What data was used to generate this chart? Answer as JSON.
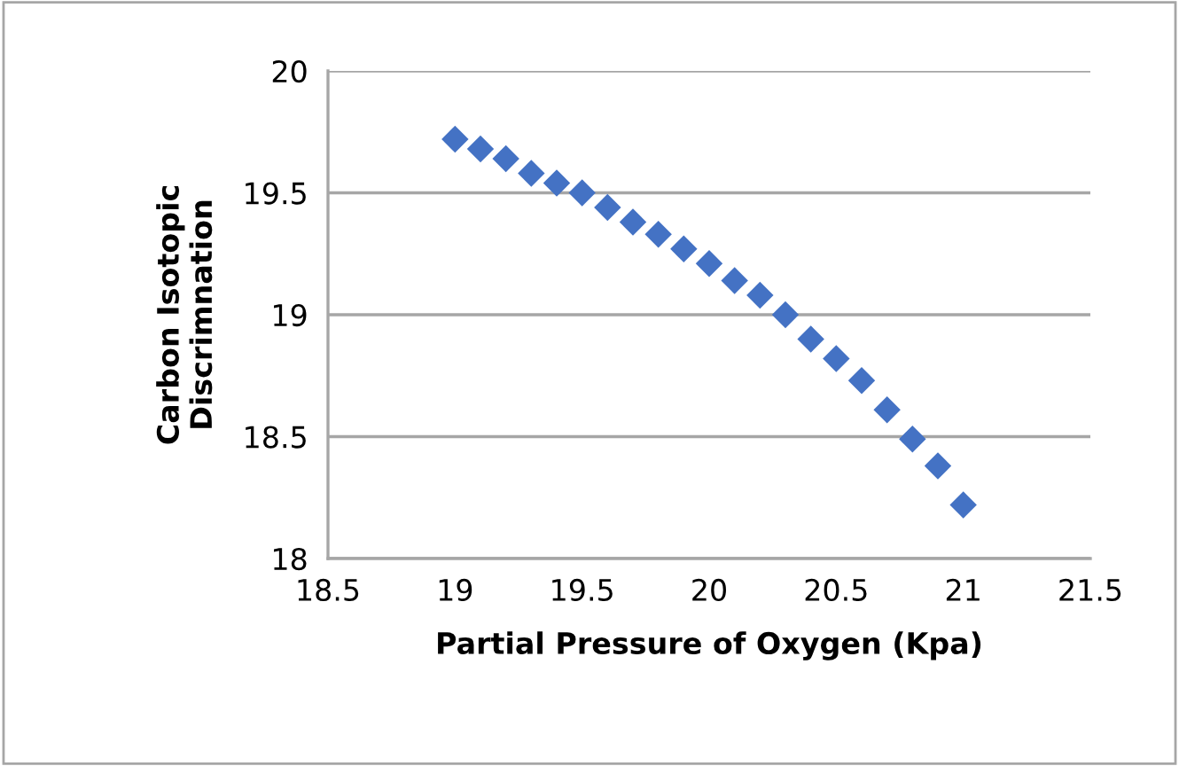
{
  "chart_data": {
    "type": "scatter",
    "xlabel": "Partial Pressure of Oxygen (Kpa)",
    "ylabel": "Carbon Isotopic\nDiscrimnation",
    "x": [
      19.0,
      19.1,
      19.2,
      19.3,
      19.4,
      19.5,
      19.6,
      19.7,
      19.8,
      19.9,
      20.0,
      20.1,
      20.2,
      20.3,
      20.4,
      20.5,
      20.6,
      20.7,
      20.8,
      20.9,
      21.0
    ],
    "series": [
      {
        "color": "#4472c4",
        "values": [
          19.72,
          19.68,
          19.64,
          19.58,
          19.54,
          19.5,
          19.44,
          19.38,
          19.33,
          19.27,
          19.21,
          19.14,
          19.08,
          19.0,
          18.9,
          18.82,
          18.73,
          18.61,
          18.49,
          18.38,
          18.22
        ]
      }
    ],
    "xlim": [
      18.5,
      21.5
    ],
    "xticks": [
      18.5,
      19,
      19.5,
      20,
      20.5,
      21,
      21.5
    ],
    "ylim": [
      18,
      20
    ],
    "yticks": [
      18,
      18.5,
      19,
      19.5,
      20
    ],
    "grid": "y",
    "marker": "diamond",
    "legend": false
  }
}
